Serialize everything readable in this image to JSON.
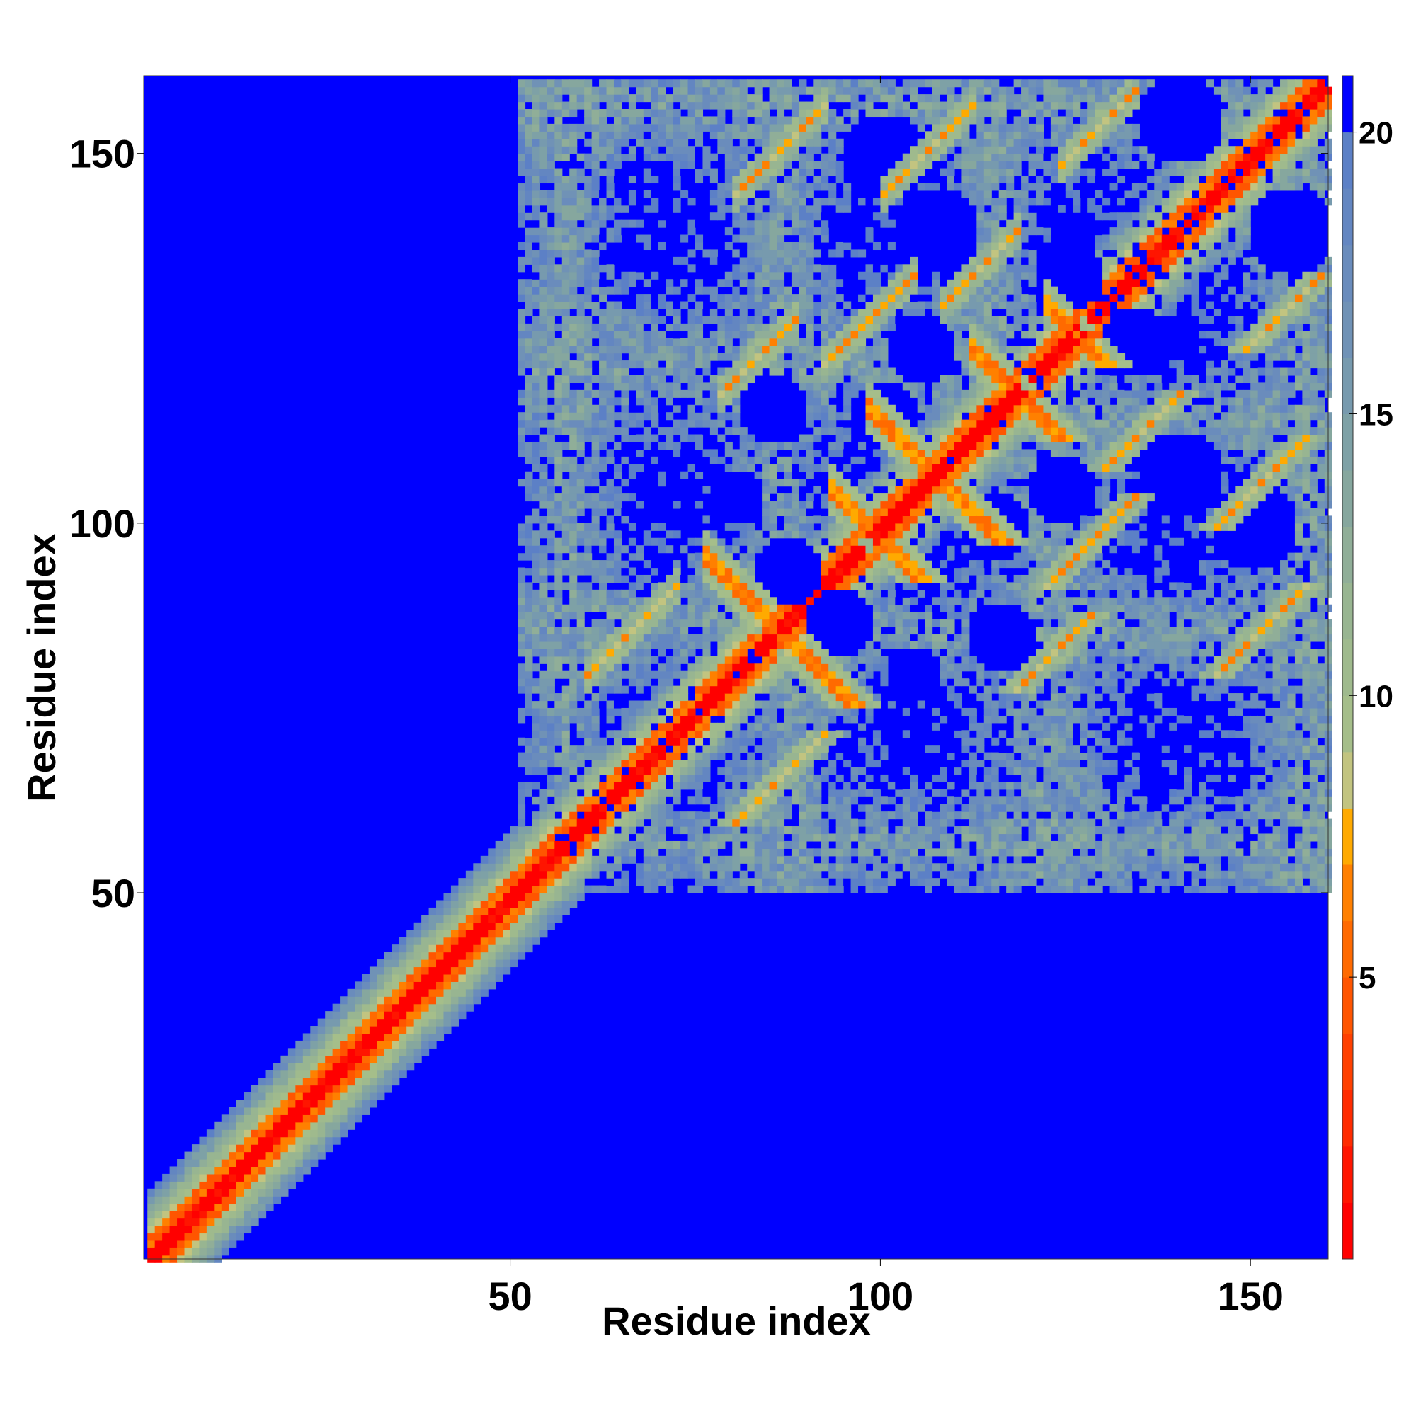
{
  "chart_data": {
    "type": "heatmap",
    "title": "",
    "xlabel": "Residue index",
    "ylabel": "Residue index",
    "x_range": [
      1,
      160
    ],
    "y_range": [
      1,
      160
    ],
    "x_ticks": [
      50,
      100,
      150
    ],
    "y_ticks": [
      50,
      100,
      150
    ],
    "x_tick_labels": [
      "50",
      "100",
      "150"
    ],
    "y_tick_labels": [
      "50",
      "100",
      "150"
    ],
    "n_residues": 160,
    "colorbar": {
      "range": [
        0,
        21
      ],
      "ticks": [
        5,
        10,
        15,
        20
      ],
      "tick_labels": [
        "5",
        "10",
        "15",
        "20"
      ],
      "levels": [
        {
          "upper": 1,
          "color": "#ff0000"
        },
        {
          "upper": 2,
          "color": "#ff1500"
        },
        {
          "upper": 3,
          "color": "#ff2b00"
        },
        {
          "upper": 4,
          "color": "#ff4000"
        },
        {
          "upper": 5,
          "color": "#ff5500"
        },
        {
          "upper": 6,
          "color": "#ff6a00"
        },
        {
          "upper": 7,
          "color": "#ff8000"
        },
        {
          "upper": 8,
          "color": "#ffaa00"
        },
        {
          "upper": 9,
          "color": "#c2c480"
        },
        {
          "upper": 10,
          "color": "#a5be8a"
        },
        {
          "upper": 11,
          "color": "#9fba8d"
        },
        {
          "upper": 12,
          "color": "#98b591"
        },
        {
          "upper": 13,
          "color": "#90ae98"
        },
        {
          "upper": 14,
          "color": "#86a79e"
        },
        {
          "upper": 15,
          "color": "#7ea1a6"
        },
        {
          "upper": 16,
          "color": "#779aae"
        },
        {
          "upper": 17,
          "color": "#7092b6"
        },
        {
          "upper": 18,
          "color": "#6a8cbc"
        },
        {
          "upper": 19,
          "color": "#6386c1"
        },
        {
          "upper": 20,
          "color": "#5c80c6"
        },
        {
          "upper": 21,
          "color": "#0000ff"
        }
      ]
    },
    "features": {
      "domain_boundary": 55,
      "antiparallel_contacts": [
        {
          "i_range": [
            78,
            95
          ],
          "sum": 172
        },
        {
          "i_range": [
            95,
            101
          ],
          "sum": 198
        },
        {
          "i_range": [
            100,
            110
          ],
          "sum": 214
        },
        {
          "i_range": [
            114,
            122
          ],
          "sum": 236
        },
        {
          "i_range": [
            124,
            134
          ],
          "sum": 252
        }
      ],
      "parallel_contacts": [
        {
          "i_range": [
            60,
            72
          ],
          "offset": 20
        },
        {
          "i_range": [
            78,
            88
          ],
          "offset": 40
        },
        {
          "i_range": [
            80,
            92
          ],
          "offset": 65
        },
        {
          "i_range": [
            92,
            104
          ],
          "offset": 30
        },
        {
          "i_range": [
            100,
            112
          ],
          "offset": 45
        },
        {
          "i_range": [
            108,
            118
          ],
          "offset": 22
        },
        {
          "i_range": [
            124,
            134
          ],
          "offset": 25
        }
      ],
      "voids": [
        {
          "center": [
            94,
            87
          ],
          "radius": 5
        },
        {
          "center": [
            80,
            104
          ],
          "radius": 4
        },
        {
          "center": [
            85,
            116
          ],
          "radius": 5
        },
        {
          "center": [
            115,
            100
          ],
          "radius": 5
        },
        {
          "center": [
            105,
            124
          ],
          "radius": 5
        },
        {
          "center": [
            125,
            134
          ],
          "radius": 5
        },
        {
          "center": [
            140,
            107
          ],
          "radius": 6
        },
        {
          "center": [
            140,
            155
          ],
          "radius": 6
        },
        {
          "center": [
            100,
            150
          ],
          "radius": 6
        }
      ]
    }
  }
}
